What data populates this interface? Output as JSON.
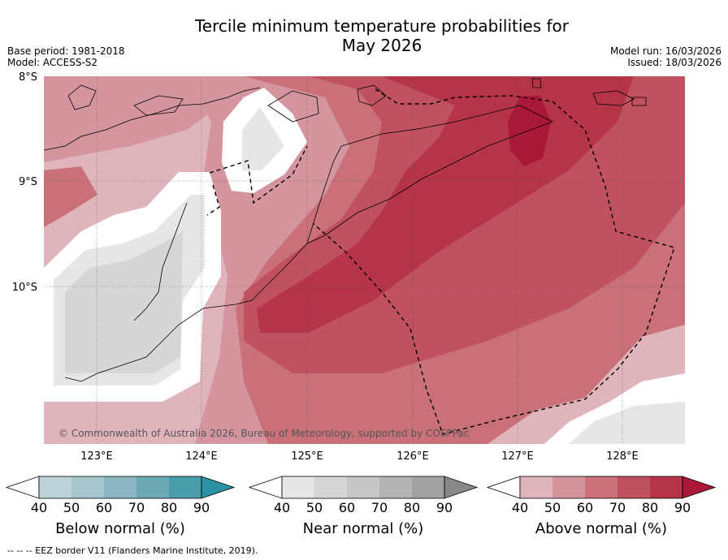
{
  "title_line1": "Tercile minimum temperature probabilities for",
  "title_line2": "May 2026",
  "meta_left": {
    "base_period": "Base period: 1981-2018",
    "model": "Model: ACCESS-S2"
  },
  "meta_right": {
    "model_run": "Model run: 16/03/2026",
    "issued": "Issued: 18/03/2026"
  },
  "map": {
    "lat_labels": [
      "8°S",
      "9°S",
      "10°S"
    ],
    "lon_labels": [
      "123°E",
      "124°E",
      "125°E",
      "126°E",
      "127°E",
      "128°E"
    ],
    "copyright": "© Commonwealth of Australia 2026, Bureau of Meteorology, supported by COSPPac"
  },
  "colorbars": [
    {
      "title": "Below normal (%)",
      "ticks": [
        "40",
        "50",
        "60",
        "70",
        "80",
        "90"
      ],
      "colors": [
        "#bdd3da",
        "#a6c6cc",
        "#89b6c0",
        "#6ba9b4",
        "#4a9eab",
        "#2a93a3"
      ]
    },
    {
      "title": "Near normal (%)",
      "ticks": [
        "40",
        "50",
        "60",
        "70",
        "80",
        "90"
      ],
      "colors": [
        "#e6e6e6",
        "#d6d6d6",
        "#c6c6c6",
        "#b4b4b4",
        "#a2a2a2",
        "#888888"
      ]
    },
    {
      "title": "Above normal (%)",
      "ticks": [
        "40",
        "50",
        "60",
        "70",
        "80",
        "90"
      ],
      "colors": [
        "#e0b4bb",
        "#d4959e",
        "#c97079",
        "#c0515f",
        "#b53447",
        "#a91838"
      ]
    }
  ],
  "footer": "--  --  -- EEZ border V11 (Flanders Marine Institute, 2019)."
}
